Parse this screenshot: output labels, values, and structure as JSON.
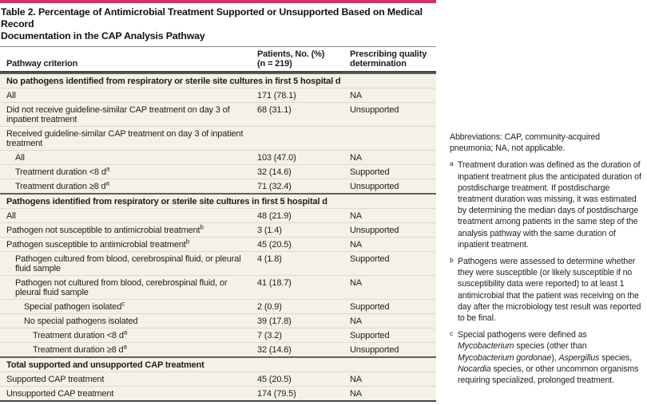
{
  "colors": {
    "accent": "#e82765",
    "row_background": "#f4f2e7"
  },
  "table": {
    "title_lines": [
      "Table 2. Percentage of Antimicrobial Treatment Supported or Unsupported Based on Medical Record",
      "Documentation in the CAP Analysis Pathway"
    ],
    "columns": {
      "criterion": "Pathway criterion",
      "patients_line1": "Patients, No. (%)",
      "patients_line2": "(n = 219)",
      "quality_line1": "Prescribing quality",
      "quality_line2": "determination"
    },
    "rows": [
      {
        "type": "section",
        "label": "No pathogens identified from respiratory or sterile site cultures in first 5 hospital d"
      },
      {
        "type": "row",
        "indent": 0,
        "label": "All",
        "value": "171 (78.1)",
        "quality": "NA"
      },
      {
        "type": "row",
        "indent": 0,
        "label": "Did not receive guideline-similar CAP treatment on day 3 of inpatient treatment",
        "value": "68 (31.1)",
        "quality": "Unsupported"
      },
      {
        "type": "row",
        "indent": 0,
        "label": "Received guideline-similar CAP treatment on day 3 of inpatient treatment",
        "value": "",
        "quality": ""
      },
      {
        "type": "row",
        "indent": 1,
        "label": "All",
        "value": "103 (47.0)",
        "quality": "NA"
      },
      {
        "type": "row",
        "indent": 1,
        "label": "Treatment duration <8 d",
        "label_sup": "a",
        "value": "32 (14.6)",
        "quality": "Supported"
      },
      {
        "type": "row",
        "indent": 1,
        "label": "Treatment duration ≥8 d",
        "label_sup": "a",
        "value": "71 (32.4)",
        "quality": "Unsupported"
      },
      {
        "type": "section",
        "label": "Pathogens identified from respiratory or sterile site cultures in first 5 hospital d"
      },
      {
        "type": "row",
        "indent": 0,
        "label": "All",
        "value": "48 (21.9)",
        "quality": "NA"
      },
      {
        "type": "row",
        "indent": 0,
        "label": "Pathogen not susceptible to antimicrobial treatment",
        "label_sup": "b",
        "value": "3 (1.4)",
        "quality": "Unsupported"
      },
      {
        "type": "row",
        "indent": 0,
        "label": "Pathogen susceptible to antimicrobial treatment",
        "label_sup": "b",
        "value": "45 (20.5)",
        "quality": "NA"
      },
      {
        "type": "row",
        "indent": 1,
        "label": "Pathogen cultured from blood, cerebrospinal fluid, or pleural fluid sample",
        "value": "4 (1.8)",
        "quality": "Supported"
      },
      {
        "type": "row",
        "indent": 1,
        "label": "Pathogen not cultured from blood, cerebrospinal fluid, or pleural fluid sample",
        "value": "41 (18.7)",
        "quality": "NA"
      },
      {
        "type": "row",
        "indent": 2,
        "label": "Special pathogen isolated",
        "label_sup": "c",
        "value": "2 (0.9)",
        "quality": "Supported"
      },
      {
        "type": "row",
        "indent": 2,
        "label": "No special pathogens isolated",
        "value": "39 (17.8)",
        "quality": "NA"
      },
      {
        "type": "row",
        "indent": 3,
        "label": "Treatment duration <8 d",
        "label_sup": "a",
        "value": "7 (3.2)",
        "quality": "Supported"
      },
      {
        "type": "row",
        "indent": 3,
        "label": "Treatment duration ≥8 d",
        "label_sup": "a",
        "value": "32 (14.6)",
        "quality": "Unsupported"
      },
      {
        "type": "section",
        "label": "Total supported and unsupported CAP treatment"
      },
      {
        "type": "row",
        "indent": 0,
        "label": "Supported CAP treatment",
        "value": "45 (20.5)",
        "quality": "NA"
      },
      {
        "type": "row",
        "indent": 0,
        "label": "Unsupported CAP treatment",
        "value": "174 (79.5)",
        "quality": "NA"
      }
    ]
  },
  "footnotes": {
    "abbreviations": "Abbreviations: CAP, community-acquired pneumonia; NA, not applicable.",
    "items": [
      {
        "marker": "a",
        "text": "Treatment duration was defined as the duration of inpatient treatment plus the anticipated duration of postdischarge treatment. If postdischarge treatment duration was missing, it was estimated by determining the median days of postdischarge treatment among patients in the same step of the analysis pathway with the same duration of inpatient treatment."
      },
      {
        "marker": "b",
        "text": "Pathogens were assessed to determine whether they were susceptible (or likely susceptible if no susceptibility data were reported) to at least 1 antimicrobial that the patient was receiving on the day after the microbiology test result was reported to be final."
      },
      {
        "marker": "c",
        "segments": [
          {
            "text": "Special pathogens were defined as "
          },
          {
            "text": "Mycobacterium",
            "italic": true
          },
          {
            "text": " species (other than "
          },
          {
            "text": "Mycobacterium gordonae",
            "italic": true
          },
          {
            "text": "), "
          },
          {
            "text": "Aspergillus",
            "italic": true
          },
          {
            "text": " species, "
          },
          {
            "text": "Nocardia",
            "italic": true
          },
          {
            "text": " species, or other uncommon organisms requiring specialized, prolonged treatment."
          }
        ]
      }
    ]
  }
}
